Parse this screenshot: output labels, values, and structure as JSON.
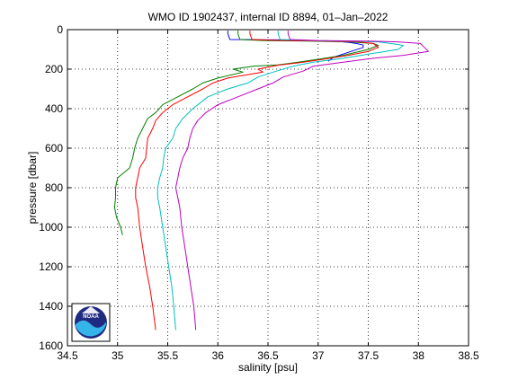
{
  "chart_data": {
    "type": "line",
    "title": "WMO ID 1902437, internal ID 8894, 01–Jan–2022",
    "xlabel": "salinity [psu]",
    "ylabel": "pressure [dbar]",
    "xlim": [
      34.5,
      38.5
    ],
    "ylim": [
      1600,
      0
    ],
    "y_reversed": true,
    "grid": true,
    "grid_style": "dotted",
    "x_ticks": [
      "34.5",
      "35",
      "35.5",
      "36",
      "36.5",
      "37",
      "37.5",
      "38",
      "38.5"
    ],
    "y_ticks": [
      "0",
      "200",
      "400",
      "600",
      "800",
      "1000",
      "1200",
      "1400",
      "1600"
    ],
    "logo": {
      "text": "NOAA",
      "colors": {
        "dark": "#1f2b80",
        "light": "#35b4ea"
      }
    },
    "series": [
      {
        "color": "#0000ff",
        "points": [
          [
            36.1,
            5
          ],
          [
            36.1,
            20
          ],
          [
            36.12,
            50
          ],
          [
            36.6,
            52
          ],
          [
            36.9,
            55
          ],
          [
            37.1,
            58
          ],
          [
            37.2,
            60
          ],
          [
            37.3,
            64
          ],
          [
            37.38,
            70
          ],
          [
            37.45,
            78
          ],
          [
            37.45,
            90
          ],
          [
            37.3,
            115
          ],
          [
            37.15,
            140
          ],
          [
            37.1,
            160
          ]
        ]
      },
      {
        "color": "#007f00",
        "points": [
          [
            36.2,
            5
          ],
          [
            36.2,
            20
          ],
          [
            36.22,
            50
          ],
          [
            36.45,
            55
          ],
          [
            36.9,
            58
          ],
          [
            37.3,
            62
          ],
          [
            37.55,
            70
          ],
          [
            37.6,
            80
          ],
          [
            37.5,
            100
          ],
          [
            37.25,
            130
          ],
          [
            37.0,
            150
          ],
          [
            36.8,
            165
          ],
          [
            36.6,
            178
          ],
          [
            36.35,
            185
          ],
          [
            36.15,
            200
          ],
          [
            36.25,
            215
          ],
          [
            36.0,
            245
          ],
          [
            35.85,
            270
          ],
          [
            35.75,
            300
          ],
          [
            35.6,
            340
          ],
          [
            35.45,
            380
          ],
          [
            35.38,
            420
          ],
          [
            35.3,
            450
          ],
          [
            35.25,
            500
          ],
          [
            35.2,
            550
          ],
          [
            35.17,
            600
          ],
          [
            35.15,
            650
          ],
          [
            35.12,
            700
          ],
          [
            35.0,
            750
          ],
          [
            34.98,
            800
          ],
          [
            34.98,
            850
          ],
          [
            34.97,
            900
          ],
          [
            34.99,
            950
          ],
          [
            35.03,
            1000
          ],
          [
            35.05,
            1040
          ]
        ]
      },
      {
        "color": "#ff0000",
        "points": [
          [
            36.32,
            5
          ],
          [
            36.32,
            20
          ],
          [
            36.34,
            50
          ],
          [
            36.65,
            55
          ],
          [
            37.1,
            58
          ],
          [
            37.4,
            62
          ],
          [
            37.55,
            70
          ],
          [
            37.6,
            90
          ],
          [
            37.5,
            110
          ],
          [
            37.3,
            130
          ],
          [
            37.05,
            150
          ],
          [
            36.85,
            165
          ],
          [
            36.6,
            180
          ],
          [
            36.4,
            200
          ],
          [
            36.45,
            215
          ],
          [
            36.1,
            245
          ],
          [
            35.95,
            270
          ],
          [
            35.85,
            300
          ],
          [
            35.7,
            340
          ],
          [
            35.55,
            380
          ],
          [
            35.45,
            420
          ],
          [
            35.38,
            460
          ],
          [
            35.35,
            500
          ],
          [
            35.3,
            550
          ],
          [
            35.29,
            600
          ],
          [
            35.28,
            650
          ],
          [
            35.22,
            700
          ],
          [
            35.2,
            750
          ],
          [
            35.18,
            800
          ],
          [
            35.18,
            850
          ],
          [
            35.2,
            900
          ],
          [
            35.22,
            1000
          ],
          [
            35.25,
            1100
          ],
          [
            35.28,
            1200
          ],
          [
            35.32,
            1300
          ],
          [
            35.35,
            1400
          ],
          [
            35.38,
            1520
          ]
        ]
      },
      {
        "color": "#00bfbf",
        "points": [
          [
            36.6,
            5
          ],
          [
            36.6,
            20
          ],
          [
            36.62,
            50
          ],
          [
            36.95,
            55
          ],
          [
            37.3,
            58
          ],
          [
            37.6,
            62
          ],
          [
            37.75,
            72
          ],
          [
            37.85,
            80
          ],
          [
            37.8,
            100
          ],
          [
            37.55,
            120
          ],
          [
            37.25,
            145
          ],
          [
            36.95,
            165
          ],
          [
            36.75,
            185
          ],
          [
            36.55,
            215
          ],
          [
            36.4,
            240
          ],
          [
            36.3,
            270
          ],
          [
            36.1,
            300
          ],
          [
            35.9,
            340
          ],
          [
            35.75,
            400
          ],
          [
            35.65,
            450
          ],
          [
            35.58,
            500
          ],
          [
            35.55,
            550
          ],
          [
            35.48,
            600
          ],
          [
            35.46,
            650
          ],
          [
            35.45,
            700
          ],
          [
            35.42,
            750
          ],
          [
            35.4,
            800
          ],
          [
            35.4,
            850
          ],
          [
            35.42,
            900
          ],
          [
            35.45,
            1000
          ],
          [
            35.48,
            1100
          ],
          [
            35.51,
            1200
          ],
          [
            35.54,
            1300
          ],
          [
            35.56,
            1400
          ],
          [
            35.58,
            1520
          ]
        ]
      },
      {
        "color": "#bf00bf",
        "points": [
          [
            36.7,
            5
          ],
          [
            36.7,
            20
          ],
          [
            36.72,
            50
          ],
          [
            37.0,
            55
          ],
          [
            37.5,
            58
          ],
          [
            37.8,
            62
          ],
          [
            38.02,
            70
          ],
          [
            38.05,
            85
          ],
          [
            38.1,
            110
          ],
          [
            37.85,
            130
          ],
          [
            37.55,
            145
          ],
          [
            37.25,
            165
          ],
          [
            36.95,
            185
          ],
          [
            36.85,
            210
          ],
          [
            36.65,
            240
          ],
          [
            36.55,
            270
          ],
          [
            36.4,
            300
          ],
          [
            36.2,
            340
          ],
          [
            36.0,
            380
          ],
          [
            35.88,
            420
          ],
          [
            35.8,
            460
          ],
          [
            35.75,
            500
          ],
          [
            35.72,
            550
          ],
          [
            35.7,
            600
          ],
          [
            35.65,
            650
          ],
          [
            35.62,
            700
          ],
          [
            35.6,
            750
          ],
          [
            35.58,
            800
          ],
          [
            35.6,
            850
          ],
          [
            35.62,
            900
          ],
          [
            35.64,
            1000
          ],
          [
            35.67,
            1100
          ],
          [
            35.7,
            1200
          ],
          [
            35.73,
            1300
          ],
          [
            35.76,
            1400
          ],
          [
            35.78,
            1520
          ]
        ]
      }
    ]
  }
}
